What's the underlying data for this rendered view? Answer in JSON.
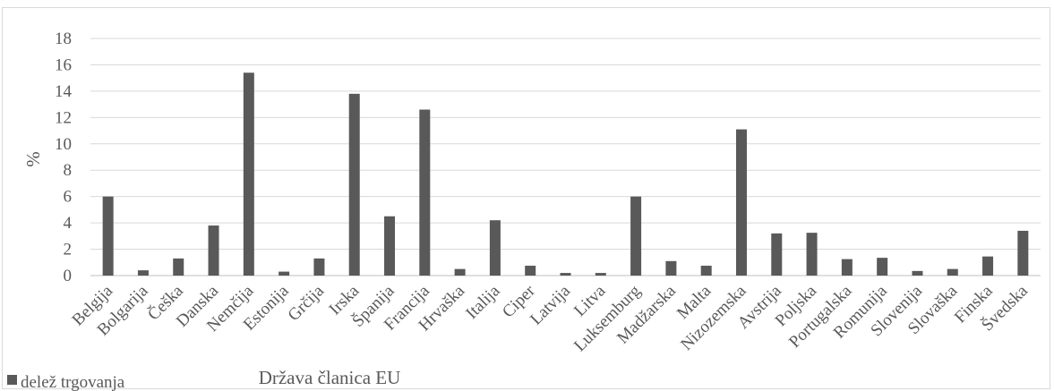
{
  "chart_data": {
    "type": "bar",
    "categories": [
      "Belgija",
      "Bolgarija",
      "Češka",
      "Danska",
      "Nemčija",
      "Estonija",
      "Grčija",
      "Irska",
      "Španija",
      "Francija",
      "Hrvaška",
      "Italija",
      "Ciper",
      "Latvija",
      "Litva",
      "Luksemburg",
      "Madžarska",
      "Malta",
      "Nizozemska",
      "Avstrija",
      "Poljska",
      "Portugalska",
      "Romunija",
      "Slovenija",
      "Slovaška",
      "Finska",
      "Švedska"
    ],
    "series": [
      {
        "name": "delež trgovanja",
        "values": [
          6.0,
          0.4,
          1.3,
          3.8,
          15.4,
          0.3,
          1.3,
          13.8,
          4.5,
          12.6,
          0.5,
          4.2,
          0.75,
          0.2,
          0.2,
          6.0,
          1.1,
          0.75,
          11.1,
          3.2,
          3.25,
          1.25,
          1.35,
          0.35,
          0.5,
          1.45,
          3.4
        ]
      }
    ],
    "xlabel": "Država članica EU",
    "ylabel": "%",
    "ylim": [
      0,
      18
    ],
    "yticks": [
      0,
      2,
      4,
      6,
      8,
      10,
      12,
      14,
      16,
      18
    ],
    "grid": true,
    "legend": "bottom-left",
    "colors": {
      "bar": "#595959",
      "grid": "#d9d9d9",
      "text": "#595959"
    }
  }
}
